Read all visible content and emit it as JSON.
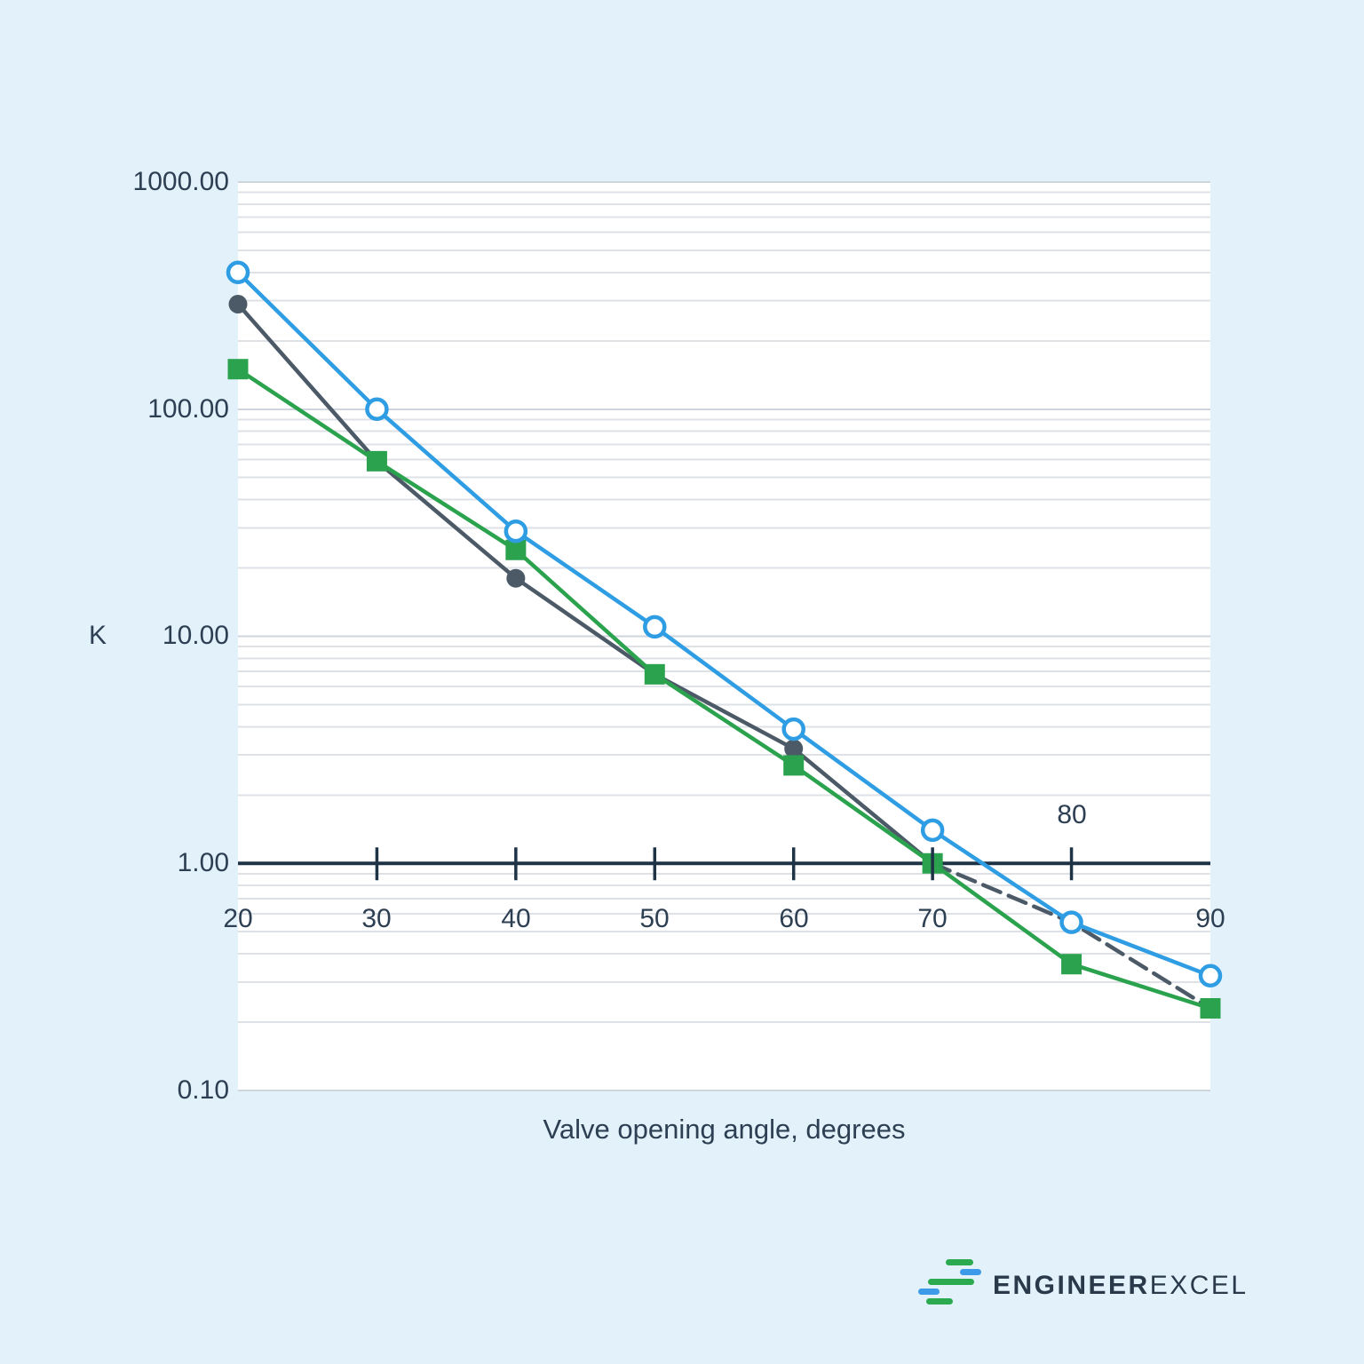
{
  "page": {
    "background_color": "#E3F1FB",
    "ink_color": "#2D3F52",
    "axis_color": "#1F3346"
  },
  "chart_data": {
    "type": "line",
    "title": "",
    "xlabel": "Valve opening angle, degrees",
    "ylabel": "K",
    "x": [
      20,
      30,
      40,
      50,
      60,
      70,
      80,
      90
    ],
    "x_tick_labels": [
      "20",
      "30",
      "40",
      "50",
      "60",
      "70",
      "80",
      "90"
    ],
    "y_tick_labels": [
      "1000.00",
      "100.00",
      "10.00",
      "1.00",
      "0.10"
    ],
    "y_tick_values": [
      1000,
      100,
      10,
      1,
      0.1
    ],
    "y_scale": "log10",
    "xlim": [
      20,
      90
    ],
    "ylim": [
      0.1,
      1000
    ],
    "x_axis_crosses_at_y": 1.0,
    "grid": {
      "horizontal_log_minor_gridlines": true,
      "vertical_gridlines": false
    },
    "legend": "none",
    "series": [
      {
        "id": "dark-filled-circle-series",
        "color": "#4C5A68",
        "marker": "filled-circle",
        "line_style": "solid, dashed from x=70 to x=90",
        "dash_from_x": 70,
        "values": [
          290,
          59,
          18,
          6.8,
          3.2,
          1.0,
          0.55,
          0.23
        ]
      },
      {
        "id": "green-filled-square-series",
        "color": "#2BA24D",
        "marker": "filled-square",
        "line_style": "solid",
        "values": [
          150,
          59,
          24,
          6.8,
          2.7,
          1.0,
          0.36,
          0.23
        ]
      },
      {
        "id": "blue-open-circle-series",
        "color": "#2F9DE3",
        "marker": "open-circle",
        "line_style": "solid",
        "values": [
          400,
          100,
          29,
          11,
          3.9,
          1.4,
          0.55,
          0.32
        ]
      }
    ]
  },
  "logo": {
    "text_bold": "ENGINEER",
    "text_light": "EXCEL",
    "icon": "horizontal-bars-e-glyph",
    "green": "#2BAA50",
    "blue": "#3D9AE8",
    "text_color": "#2A3A4A"
  }
}
